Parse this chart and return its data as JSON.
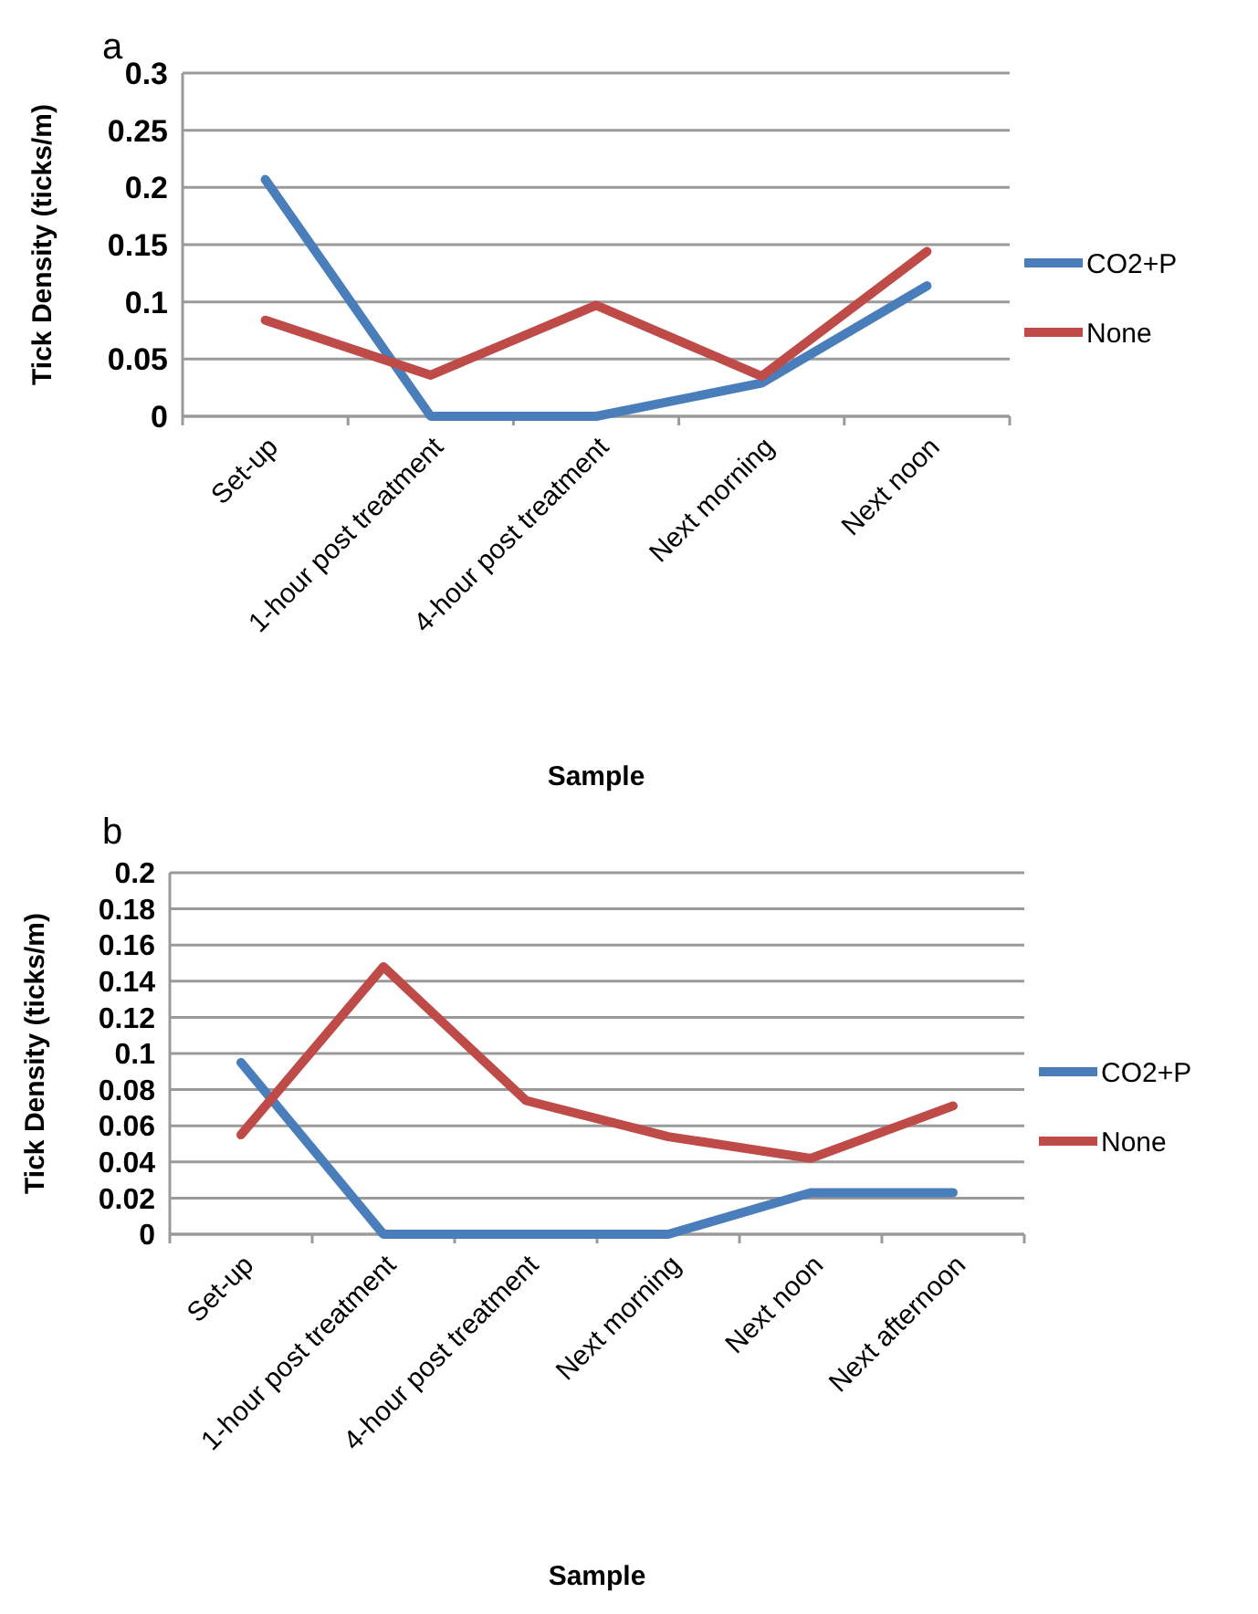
{
  "chart_data": [
    {
      "type": "line",
      "title": "a",
      "xlabel": "Sample",
      "ylabel": "Tick Density (ticks/m)",
      "categories": [
        "Set-up",
        "1-hour post treatment",
        "4-hour post treatment",
        "Next morning",
        "Next noon"
      ],
      "series": [
        {
          "name": "CO2+P",
          "color": "#4a7ebb",
          "values": [
            0.207,
            0,
            0,
            0.029,
            0.114
          ]
        },
        {
          "name": "None",
          "color": "#be4b48",
          "values": [
            0.084,
            0.036,
            0.097,
            0.035,
            0.144
          ]
        }
      ],
      "ylim": [
        0,
        0.3
      ],
      "yticks": [
        0,
        0.05,
        0.1,
        0.15,
        0.2,
        0.25,
        0.3
      ],
      "grid": "y",
      "legend": "right",
      "marker": "none"
    },
    {
      "type": "line",
      "title": "b",
      "xlabel": "Sample",
      "ylabel": "Tick Density (ticks/m)",
      "categories": [
        "Set-up",
        "1-hour post treatment",
        "4-hour post treatment",
        "Next morning",
        "Next noon",
        "Next afternoon"
      ],
      "series": [
        {
          "name": "CO2+P",
          "color": "#4a7ebb",
          "values": [
            0.095,
            0,
            0,
            0,
            0.023,
            0.023
          ]
        },
        {
          "name": "None",
          "color": "#be4b48",
          "values": [
            0.055,
            0.148,
            0.074,
            0.054,
            0.042,
            0.071
          ]
        }
      ],
      "ylim": [
        0,
        0.2
      ],
      "yticks": [
        0,
        0.02,
        0.04,
        0.06,
        0.08,
        0.1,
        0.12,
        0.14,
        0.16,
        0.18,
        0.2
      ],
      "grid": "y",
      "legend": "right",
      "marker": "none"
    }
  ]
}
